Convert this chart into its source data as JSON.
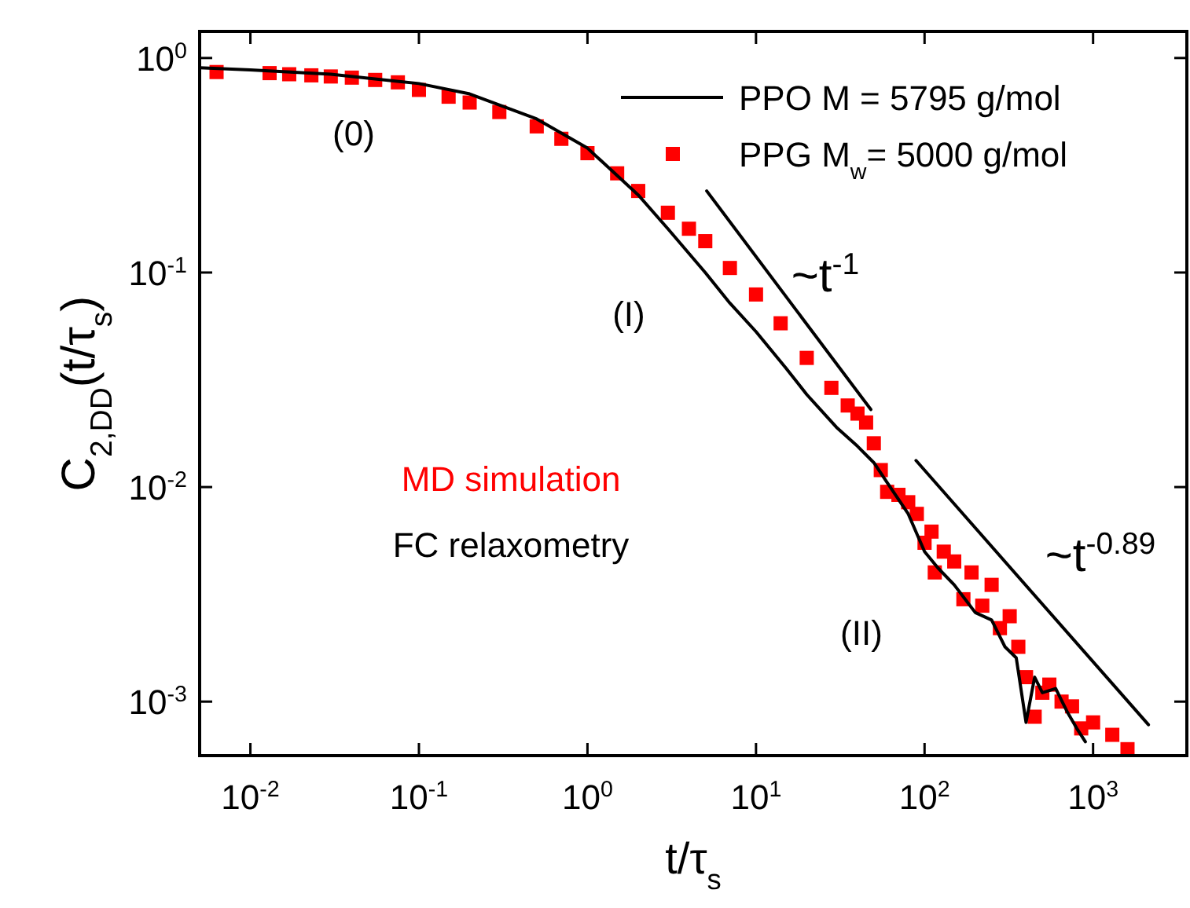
{
  "chart_data": {
    "type": "line",
    "xlabel": "t/τ$_{s}$",
    "ylabel": "C$_{2,DD}$(t/τ$_{s}$)",
    "log": "xy",
    "grid": false,
    "legend": "top right",
    "xlim": [
      0.005,
      3600
    ],
    "ylim": [
      0.00056,
      1.33
    ],
    "xticks": [
      {
        "value": 0.01,
        "label": "10$^{-2}$"
      },
      {
        "value": 0.1,
        "label": "10$^{-1}$"
      },
      {
        "value": 1,
        "label": "10$^{0}$"
      },
      {
        "value": 10,
        "label": "10$^{1}$"
      },
      {
        "value": 100,
        "label": "10$^{2}$"
      },
      {
        "value": 1000,
        "label": "10$^{3}$"
      }
    ],
    "yticks": [
      {
        "value": 0.001,
        "label": "10$^{-3}$"
      },
      {
        "value": 0.01,
        "label": "10$^{-2}$"
      },
      {
        "value": 0.1,
        "label": "10$^{-1}$"
      },
      {
        "value": 1,
        "label": "10$^{0}$"
      }
    ],
    "series": [
      {
        "name": "PPO M = 5795 g/mol",
        "color": "#000000",
        "marker": "none",
        "line_style": "solid",
        "x": [
          0.005,
          0.01,
          0.03,
          0.1,
          0.2,
          0.5,
          1,
          2,
          3,
          5,
          7,
          10,
          15,
          20,
          30,
          40,
          50,
          60,
          80,
          100,
          120,
          150,
          200,
          250,
          300,
          350,
          400,
          450,
          500,
          600,
          700,
          800,
          900
        ],
        "values": [
          0.9,
          0.88,
          0.84,
          0.76,
          0.68,
          0.52,
          0.38,
          0.23,
          0.16,
          0.1,
          0.072,
          0.053,
          0.036,
          0.027,
          0.019,
          0.0155,
          0.013,
          0.0105,
          0.0075,
          0.005,
          0.0042,
          0.0035,
          0.0026,
          0.0024,
          0.0018,
          0.0016,
          0.0008,
          0.0013,
          0.0011,
          0.00115,
          0.0009,
          0.00075,
          0.00065
        ]
      },
      {
        "name": "PPG M$_{w}$= 5000 g/mol",
        "type": "scatter",
        "color": "#ff0000",
        "marker": "square",
        "x": [
          0.0063,
          0.013,
          0.017,
          0.023,
          0.03,
          0.04,
          0.055,
          0.075,
          0.1,
          0.15,
          0.2,
          0.3,
          0.5,
          0.7,
          1,
          1.5,
          2,
          3,
          4,
          5,
          7,
          10,
          14,
          20,
          28,
          35,
          40,
          45,
          50,
          55,
          60,
          70,
          80,
          90,
          100,
          110,
          115,
          130,
          150,
          170,
          190,
          220,
          250,
          280,
          320,
          360,
          400,
          450,
          500,
          550,
          650,
          750,
          850,
          1000,
          1300,
          1600
        ],
        "values": [
          0.86,
          0.85,
          0.84,
          0.83,
          0.82,
          0.81,
          0.79,
          0.77,
          0.71,
          0.66,
          0.62,
          0.56,
          0.48,
          0.42,
          0.36,
          0.29,
          0.24,
          0.19,
          0.16,
          0.14,
          0.105,
          0.079,
          0.058,
          0.04,
          0.029,
          0.024,
          0.022,
          0.02,
          0.016,
          0.012,
          0.0095,
          0.0092,
          0.0085,
          0.0075,
          0.0055,
          0.0062,
          0.004,
          0.005,
          0.0045,
          0.003,
          0.004,
          0.0028,
          0.0035,
          0.0022,
          0.0025,
          0.0018,
          0.0013,
          0.00085,
          0.0011,
          0.0012,
          0.001,
          0.00095,
          0.00075,
          0.0008,
          0.0007,
          0.0006
        ]
      },
      {
        "color": "#000000",
        "marker": "none",
        "line_style": "solid",
        "x": [
          5.1,
          48
        ],
        "values": [
          0.24,
          0.023
        ]
      },
      {
        "color": "#000000",
        "marker": "none",
        "line_style": "solid",
        "x": [
          89,
          2130
        ],
        "values": [
          0.0133,
          0.00078
        ]
      }
    ],
    "annotations": [
      "(0)",
      "(I)",
      "(II)",
      "~t$^{-1}$",
      "~t$^{-0.89}$",
      "MD simulation",
      "FC relaxometry"
    ]
  }
}
